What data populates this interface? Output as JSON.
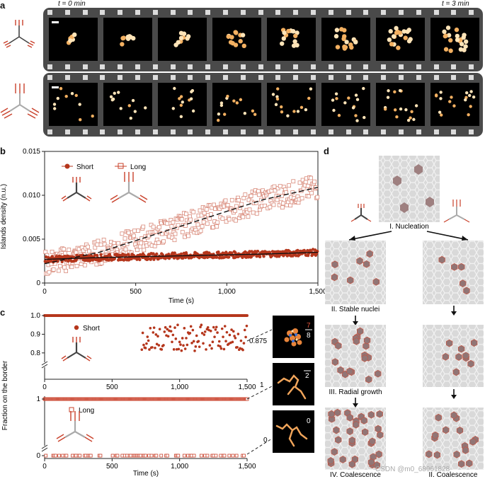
{
  "panel_a": {
    "label": "a",
    "time_start": "t = 0 min",
    "time_end": "t = 3 min"
  },
  "panel_b": {
    "label": "b",
    "legend_short": "Short",
    "legend_long": "Long"
  },
  "panel_c": {
    "label": "c",
    "legend_short": "Short",
    "legend_long": "Long",
    "inset_value_1": "7",
    "inset_value_1_den": "8",
    "inset_value_2": "2",
    "inset_value_3": "0",
    "pointer_0875": "0.875",
    "pointer_1": "1",
    "pointer_0": "0"
  },
  "panel_d": {
    "label": "d",
    "stage1": "I. Nucleation",
    "stage2": "II. Stable nuclei",
    "stage3": "III. Radial growth",
    "stage4_left": "IV. Coalescence",
    "stage4_right": "II. Coalescence"
  },
  "watermark": "CSDN @m0_68961828",
  "chart_data": [
    {
      "type": "scatter",
      "title": "",
      "xlabel": "Time (s)",
      "ylabel": "Islands density (n.u.)",
      "xlim": [
        0,
        1500
      ],
      "ylim": [
        0,
        0.015
      ],
      "x_ticks": [
        "0",
        "500",
        "1,000",
        "1,500"
      ],
      "y_ticks": [
        "0",
        "0.005",
        "0.010",
        "0.015"
      ],
      "series": [
        {
          "name": "Short",
          "marker": "filled-circle",
          "color": "#b5361c",
          "trend": [
            [
              0,
              0.0027
            ],
            [
              300,
              0.0029
            ],
            [
              750,
              0.0031
            ],
            [
              1200,
              0.0033
            ],
            [
              1500,
              0.0035
            ]
          ]
        },
        {
          "name": "Long",
          "marker": "open-square",
          "color": "#c9402a",
          "trend": [
            [
              0,
              0.0022
            ],
            [
              300,
              0.0035
            ],
            [
              600,
              0.0055
            ],
            [
              900,
              0.0075
            ],
            [
              1200,
              0.0095
            ],
            [
              1500,
              0.0109
            ]
          ]
        }
      ]
    },
    {
      "type": "scatter",
      "title": "",
      "xlabel": "",
      "ylabel": "Fraction on the border",
      "xlim": [
        0,
        1500
      ],
      "ylim": [
        0.75,
        1.0
      ],
      "x_ticks": [
        "0",
        "500",
        "1,000",
        "1,500"
      ],
      "y_ticks": [
        "0.8",
        "0.9",
        "1.0"
      ],
      "series": [
        {
          "name": "Short",
          "marker": "filled-circle",
          "color": "#b5361c",
          "baseline": 1.0,
          "scatter_range": [
            700,
            1500
          ]
        }
      ]
    },
    {
      "type": "scatter",
      "title": "",
      "xlabel": "Time (s)",
      "ylabel": "Fraction on the border",
      "xlim": [
        0,
        1500
      ],
      "ylim": [
        0,
        1
      ],
      "x_ticks": [
        "0",
        "500",
        "1,000",
        "1,500"
      ],
      "y_ticks": [
        "0",
        "1"
      ],
      "series": [
        {
          "name": "Long",
          "marker": "open-square",
          "color": "#c9402a",
          "values_seen": [
            0,
            1
          ]
        }
      ]
    }
  ]
}
